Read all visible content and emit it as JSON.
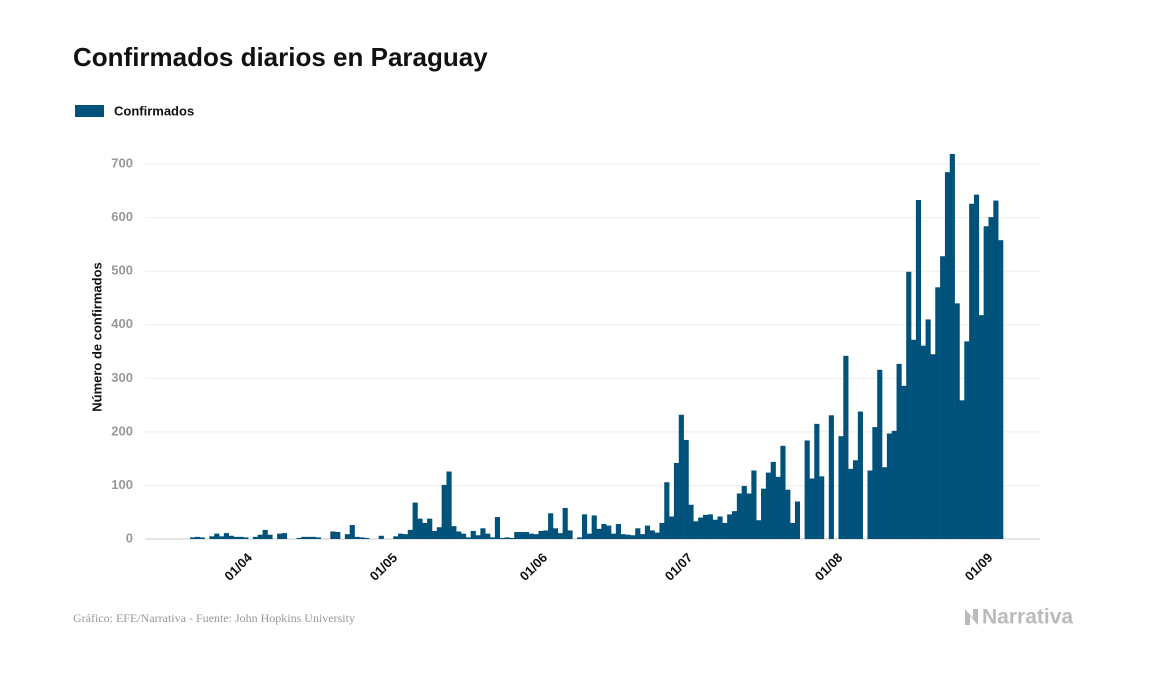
{
  "chart_data": {
    "type": "bar",
    "title": "Confirmados diarios en Paraguay",
    "y_label": "Número de confirmados",
    "footer": "Gráfico: EFE/Narrativa - Fuente: John Hopkins University",
    "logo": "Narrativa",
    "categories": [
      null,
      null,
      null,
      null,
      null,
      null,
      null,
      null,
      null,
      null,
      null,
      null,
      "01/04",
      null,
      null,
      null,
      null,
      null,
      null,
      null,
      null,
      null,
      null,
      null,
      null,
      null,
      null,
      null,
      null,
      null,
      null,
      null,
      null,
      null,
      null,
      null,
      null,
      null,
      null,
      null,
      null,
      null,
      "01/05",
      null,
      null,
      null,
      null,
      null,
      null,
      null,
      null,
      null,
      null,
      null,
      null,
      null,
      null,
      null,
      null,
      null,
      null,
      null,
      null,
      null,
      null,
      null,
      null,
      null,
      null,
      null,
      null,
      null,
      null,
      "01/06",
      null,
      null,
      null,
      null,
      null,
      null,
      null,
      null,
      null,
      null,
      null,
      null,
      null,
      null,
      null,
      null,
      null,
      null,
      null,
      null,
      null,
      null,
      null,
      null,
      null,
      null,
      null,
      null,
      null,
      "01/07",
      null,
      null,
      null,
      null,
      null,
      null,
      null,
      null,
      null,
      null,
      null,
      null,
      null,
      null,
      null,
      null,
      null,
      null,
      null,
      null,
      null,
      null,
      null,
      null,
      null,
      null,
      null,
      null,
      null,
      null,
      "01/08",
      null,
      null,
      null,
      null,
      null,
      null,
      null,
      null,
      null,
      null,
      null,
      null,
      null,
      null,
      null,
      null,
      null,
      null,
      null,
      null,
      null,
      null,
      null,
      null,
      null,
      null,
      null,
      null,
      null,
      null,
      "01/09",
      null,
      null
    ],
    "series": [
      {
        "name": "Confirmados",
        "color": "#00527a",
        "values": [
          3,
          4,
          3,
          0,
          5,
          10,
          5,
          11,
          6,
          4,
          4,
          3,
          0,
          4,
          8,
          17,
          8,
          0,
          10,
          11,
          0,
          0,
          2,
          4,
          4,
          4,
          3,
          0,
          0,
          14,
          13,
          0,
          9,
          26,
          4,
          3,
          2,
          0,
          0,
          6,
          0,
          0,
          5,
          10,
          9,
          17,
          68,
          38,
          30,
          38,
          15,
          22,
          101,
          126,
          24,
          14,
          10,
          3,
          15,
          7,
          20,
          10,
          3,
          41,
          2,
          3,
          2,
          13,
          13,
          13,
          10,
          9,
          15,
          16,
          48,
          20,
          11,
          58,
          16,
          0,
          3,
          46,
          10,
          44,
          19,
          28,
          25,
          10,
          28,
          9,
          8,
          7,
          20,
          9,
          25,
          16,
          12,
          30,
          106,
          42,
          142,
          232,
          185,
          64,
          33,
          40,
          45,
          46,
          36,
          42,
          30,
          46,
          52,
          85,
          99,
          85,
          128,
          35,
          94,
          124,
          144,
          116,
          174,
          92,
          30,
          70,
          0,
          184,
          113,
          215,
          117,
          0,
          231,
          0,
          192,
          342,
          131,
          147,
          238,
          0,
          128,
          209,
          316,
          134,
          197,
          202,
          327,
          286,
          499,
          372,
          633,
          361,
          410,
          345,
          470,
          528,
          685,
          719,
          440,
          259,
          369,
          626,
          643,
          418,
          584,
          601,
          632,
          558
        ]
      }
    ],
    "ylim": [
      0,
      760
    ],
    "yticks": [
      0,
      100,
      200,
      300,
      400,
      500,
      600,
      700
    ],
    "grid": true
  }
}
